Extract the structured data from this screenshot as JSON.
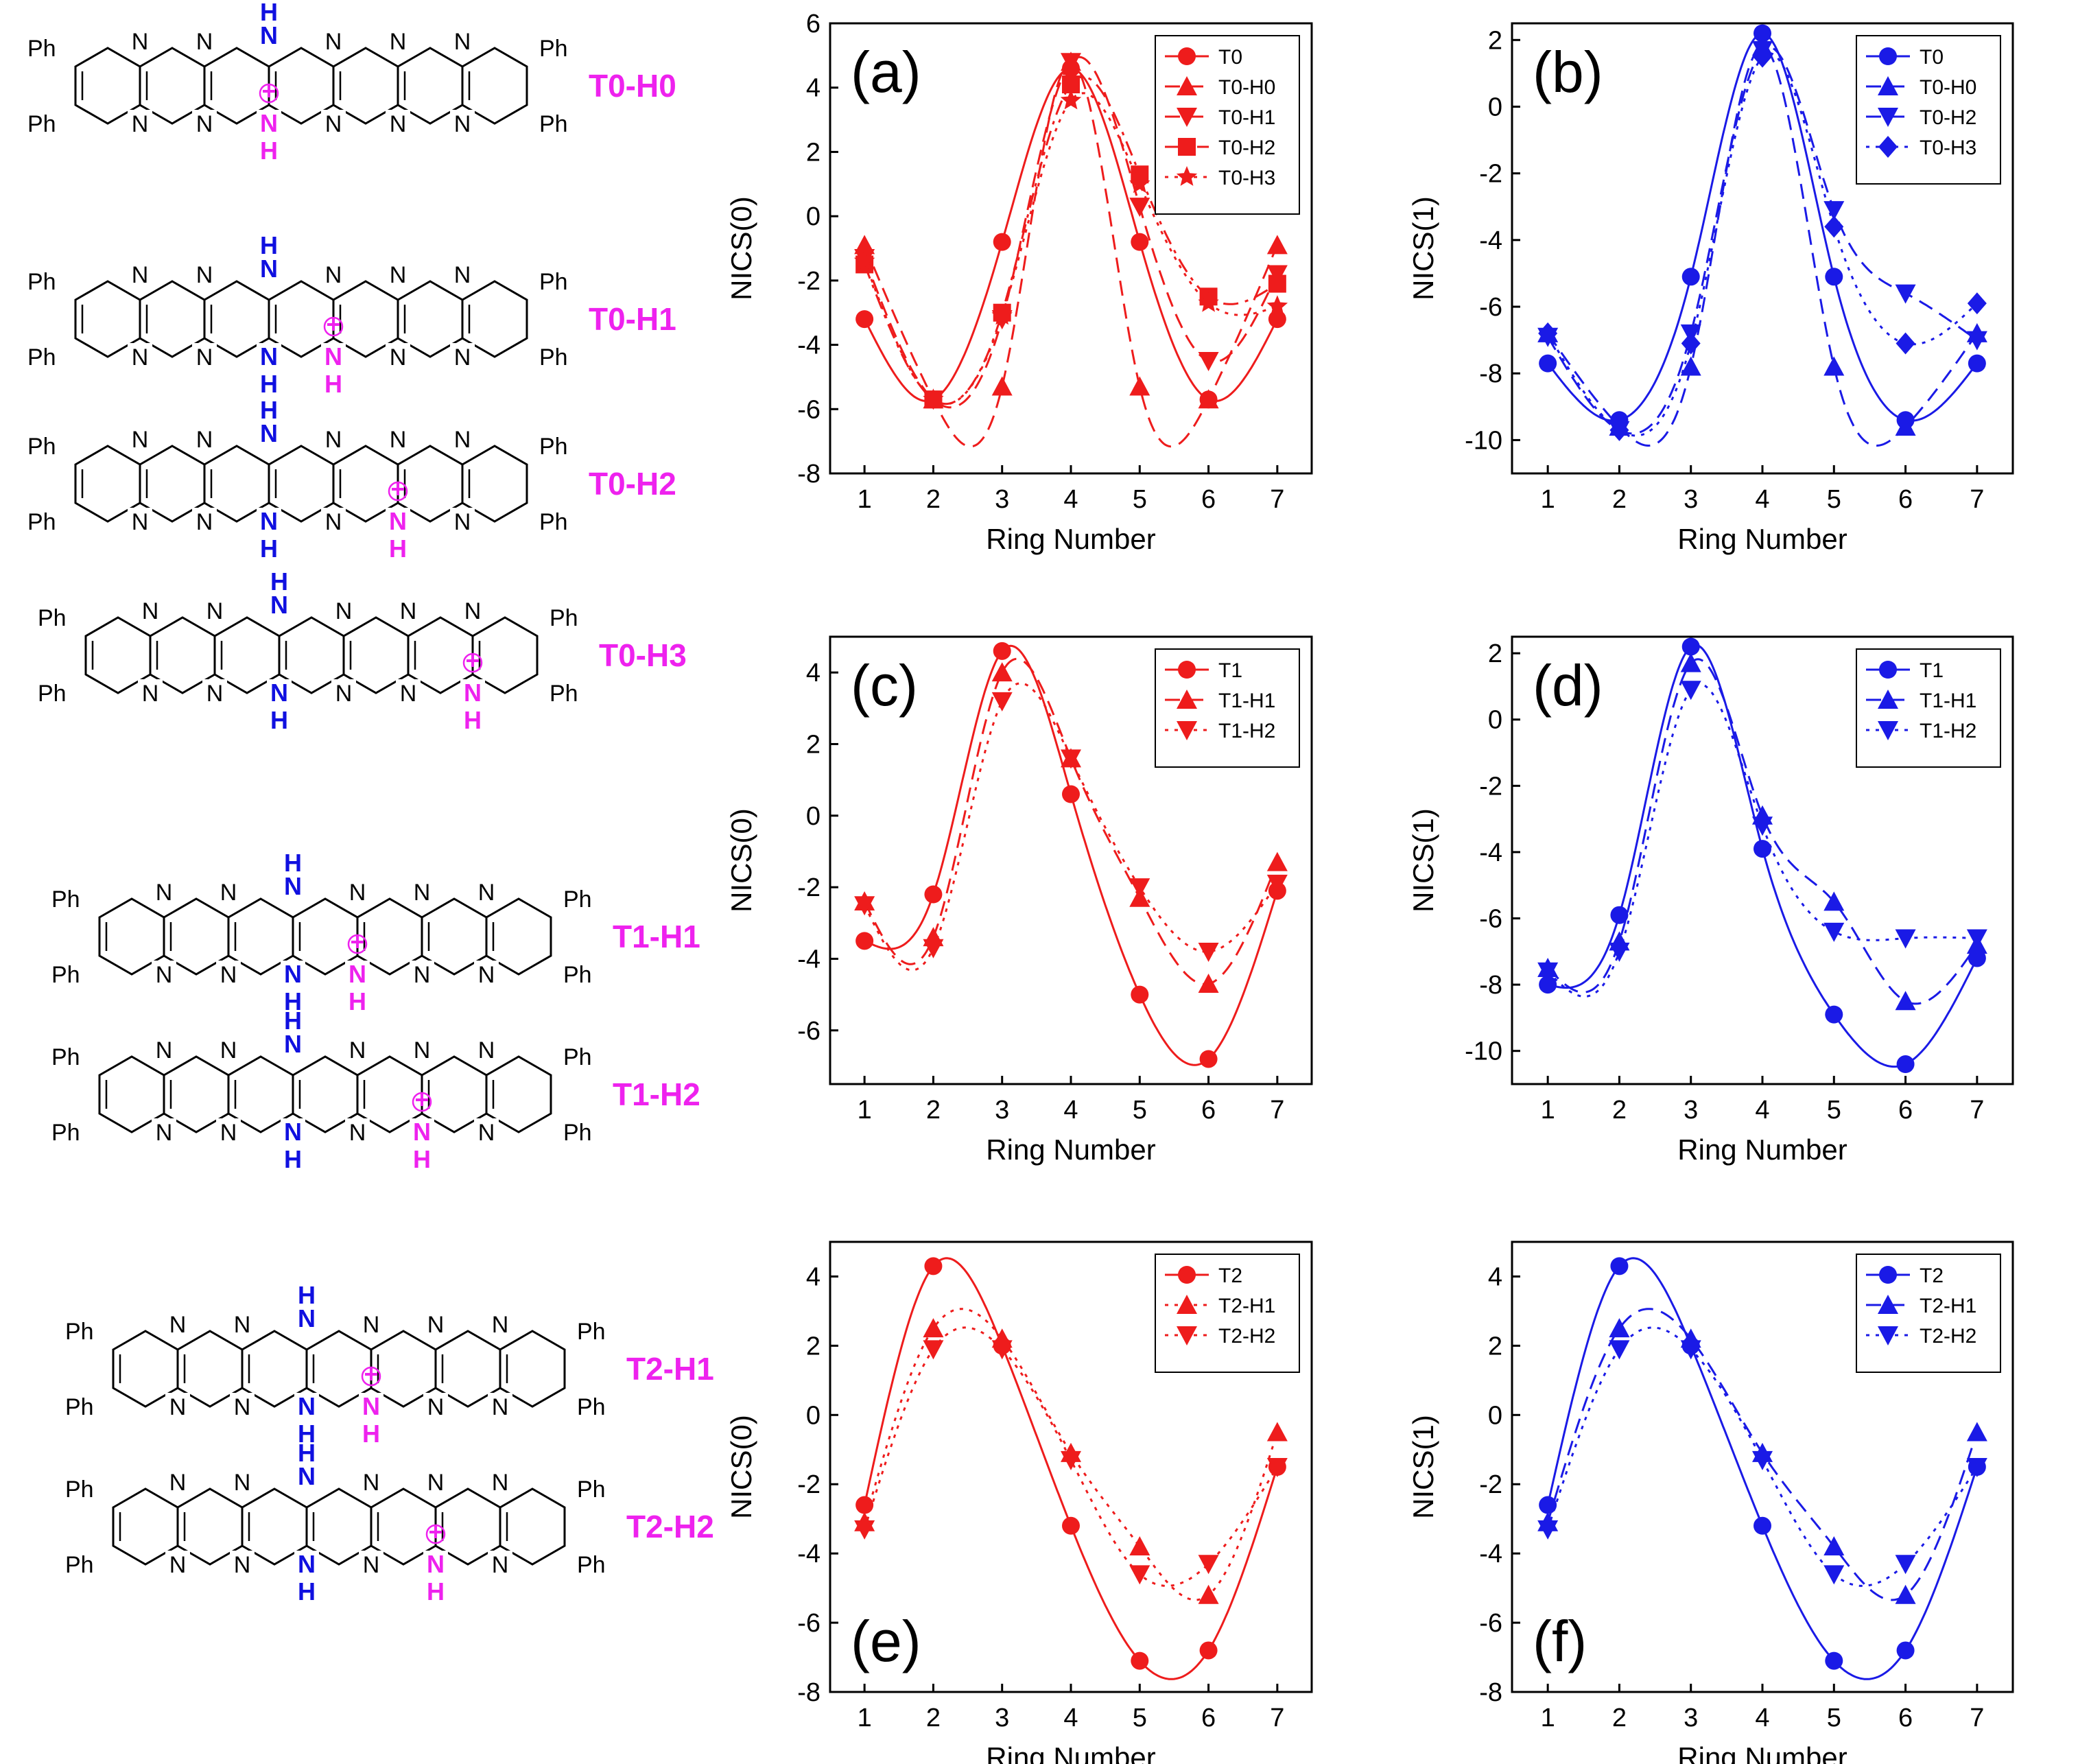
{
  "colors": {
    "red": "#ee1c1c",
    "blue": "#1a1ae6",
    "pink": "#ee22ee",
    "darkblue": "#1010e0"
  },
  "structures": [
    {
      "label": "T0-H0",
      "ph": [
        "Ph",
        "Ph",
        "Ph",
        "Ph"
      ],
      "top_nh": "H",
      "top_n": "N",
      "bottom_n_h": [
        "H",
        "H"
      ],
      "plus_index": 3,
      "neutral_nh_index": 3,
      "charge_bottom": true,
      "bottom_extra": "N",
      "bottom_extra_h": "H"
    },
    {
      "label": "T0-H1",
      "ph": [
        "Ph",
        "Ph",
        "Ph",
        "Ph"
      ],
      "plus_index": 4
    },
    {
      "label": "T0-H2",
      "ph": [
        "Ph",
        "Ph",
        "Ph",
        "Ph"
      ],
      "plus_index": 5
    },
    {
      "label": "T0-H3",
      "ph": [
        "Ph",
        "Ph",
        "Ph",
        "Ph"
      ],
      "plus_index": 6
    },
    {
      "label": "T1-H1",
      "ph": [
        "Ph",
        "Ph",
        "Ph",
        "Ph"
      ],
      "plus_index": 4
    },
    {
      "label": "T1-H2",
      "ph": [
        "Ph",
        "Ph",
        "Ph",
        "Ph"
      ],
      "plus_index": 5
    },
    {
      "label": "T2-H1",
      "ph": [
        "Ph",
        "Ph",
        "Ph",
        "Ph"
      ],
      "plus_index": 4
    },
    {
      "label": "T2-H2",
      "ph": [
        "Ph",
        "Ph",
        "Ph",
        "Ph"
      ],
      "plus_index": 5
    }
  ],
  "atom_labels": {
    "n": "N",
    "h": "H",
    "plus": "+"
  },
  "chart_data": [
    {
      "id": "a",
      "panel_label": "(a)",
      "type": "line",
      "xlabel": "Ring Number",
      "ylabel": "NICS(0)",
      "xlim": [
        0.5,
        7.5
      ],
      "ylim": [
        -8,
        6
      ],
      "xticks": [
        1,
        2,
        3,
        4,
        5,
        6,
        7
      ],
      "yticks": [
        -8,
        -6,
        -4,
        -2,
        0,
        2,
        4,
        6
      ],
      "color": "red",
      "legend_pos": "top-right",
      "x": [
        1,
        2,
        3,
        4,
        5,
        6,
        7
      ],
      "series": [
        {
          "name": "T0",
          "marker": "circle",
          "dash": "solid",
          "values": [
            -3.2,
            -5.7,
            -0.8,
            4.6,
            -0.8,
            -5.7,
            -3.2
          ]
        },
        {
          "name": "T0-H0",
          "marker": "triangle-up",
          "dash": "dashed",
          "values": [
            -0.9,
            -5.7,
            -5.3,
            4.8,
            -5.3,
            -5.7,
            -0.9
          ]
        },
        {
          "name": "T0-H1",
          "marker": "triangle-down",
          "dash": "dashed",
          "values": [
            -1.3,
            -5.7,
            -3.2,
            4.8,
            0.3,
            -4.5,
            -1.8
          ]
        },
        {
          "name": "T0-H2",
          "marker": "square",
          "dash": "dashdot",
          "values": [
            -1.5,
            -5.7,
            -3.0,
            4.1,
            1.3,
            -2.5,
            -2.1
          ]
        },
        {
          "name": "T0-H3",
          "marker": "star",
          "dash": "dotted",
          "values": [
            -1.4,
            -5.7,
            -3.1,
            3.6,
            1.0,
            -2.7,
            -2.8
          ]
        }
      ]
    },
    {
      "id": "b",
      "panel_label": "(b)",
      "type": "line",
      "xlabel": "Ring Number",
      "ylabel": "NICS(1)",
      "xlim": [
        0.5,
        7.5
      ],
      "ylim": [
        -11,
        2.5
      ],
      "xticks": [
        1,
        2,
        3,
        4,
        5,
        6,
        7
      ],
      "yticks": [
        -10,
        -8,
        -6,
        -4,
        -2,
        0,
        2
      ],
      "color": "blue",
      "legend_pos": "top-right",
      "x": [
        1,
        2,
        3,
        4,
        5,
        6,
        7
      ],
      "series": [
        {
          "name": "T0",
          "marker": "circle",
          "dash": "solid",
          "values": [
            -7.7,
            -9.4,
            -5.1,
            2.2,
            -5.1,
            -9.4,
            -7.7
          ]
        },
        {
          "name": "T0-H0",
          "marker": "triangle-up",
          "dash": "dashed",
          "values": [
            -6.8,
            -9.6,
            -7.8,
            1.8,
            -7.8,
            -9.6,
            -6.8
          ]
        },
        {
          "name": "T0-H2",
          "marker": "triangle-down",
          "dash": "dashed",
          "values": [
            -6.9,
            -9.7,
            -6.8,
            1.7,
            -3.1,
            -5.6,
            -7.0
          ]
        },
        {
          "name": "T0-H3",
          "marker": "diamond",
          "dash": "dotted",
          "values": [
            -6.8,
            -9.7,
            -7.1,
            1.5,
            -3.6,
            -7.1,
            -5.9
          ]
        }
      ]
    },
    {
      "id": "c",
      "panel_label": "(c)",
      "type": "line",
      "xlabel": "Ring Number",
      "ylabel": "NICS(0)",
      "xlim": [
        0.5,
        7.5
      ],
      "ylim": [
        -7.5,
        5
      ],
      "xticks": [
        1,
        2,
        3,
        4,
        5,
        6,
        7
      ],
      "yticks": [
        -6,
        -4,
        -2,
        0,
        2,
        4
      ],
      "color": "red",
      "legend_pos": "top-right",
      "x": [
        1,
        2,
        3,
        4,
        5,
        6,
        7
      ],
      "series": [
        {
          "name": "T1",
          "marker": "circle",
          "dash": "solid",
          "values": [
            -3.5,
            -2.2,
            4.6,
            0.6,
            -5.0,
            -6.8,
            -2.1
          ]
        },
        {
          "name": "T1-H1",
          "marker": "triangle-up",
          "dash": "dashed",
          "values": [
            -2.4,
            -3.4,
            4.0,
            1.6,
            -2.3,
            -4.7,
            -1.3
          ]
        },
        {
          "name": "T1-H2",
          "marker": "triangle-down",
          "dash": "dotted",
          "values": [
            -2.5,
            -3.7,
            3.2,
            1.6,
            -2.0,
            -3.8,
            -1.9
          ]
        }
      ]
    },
    {
      "id": "d",
      "panel_label": "(d)",
      "type": "line",
      "xlabel": "Ring Number",
      "ylabel": "NICS(1)",
      "xlim": [
        0.5,
        7.5
      ],
      "ylim": [
        -11,
        2.5
      ],
      "xticks": [
        1,
        2,
        3,
        4,
        5,
        6,
        7
      ],
      "yticks": [
        -10,
        -8,
        -6,
        -4,
        -2,
        0,
        2
      ],
      "color": "blue",
      "legend_pos": "top-right",
      "x": [
        1,
        2,
        3,
        4,
        5,
        6,
        7
      ],
      "series": [
        {
          "name": "T1",
          "marker": "circle",
          "dash": "solid",
          "values": [
            -8.0,
            -5.9,
            2.2,
            -3.9,
            -8.9,
            -10.4,
            -7.2
          ]
        },
        {
          "name": "T1-H1",
          "marker": "triangle-up",
          "dash": "dashed",
          "values": [
            -7.5,
            -6.7,
            1.7,
            -2.9,
            -5.5,
            -8.5,
            -6.8
          ]
        },
        {
          "name": "T1-H2",
          "marker": "triangle-down",
          "dash": "dotted",
          "values": [
            -7.6,
            -7.0,
            0.9,
            -3.2,
            -6.4,
            -6.6,
            -6.6
          ]
        }
      ]
    },
    {
      "id": "e",
      "panel_label": "(e)",
      "type": "line",
      "xlabel": "Ring Number",
      "ylabel": "NICS(0)",
      "xlim": [
        0.5,
        7.5
      ],
      "ylim": [
        -8,
        5
      ],
      "xticks": [
        1,
        2,
        3,
        4,
        5,
        6,
        7
      ],
      "yticks": [
        -8,
        -6,
        -4,
        -2,
        0,
        2,
        4
      ],
      "color": "red",
      "legend_pos": "top-right",
      "x": [
        1,
        2,
        3,
        4,
        5,
        6,
        7
      ],
      "series": [
        {
          "name": "T2",
          "marker": "circle",
          "dash": "solid",
          "values": [
            -2.6,
            4.3,
            2.0,
            -3.2,
            -7.1,
            -6.8,
            -1.5
          ]
        },
        {
          "name": "T2-H1",
          "marker": "triangle-up",
          "dash": "dotted",
          "values": [
            -3.1,
            2.5,
            2.2,
            -1.1,
            -3.8,
            -5.2,
            -0.5
          ]
        },
        {
          "name": "T2-H2",
          "marker": "triangle-down",
          "dash": "dotted",
          "values": [
            -3.3,
            1.9,
            1.9,
            -1.3,
            -4.6,
            -4.3,
            -1.5
          ]
        }
      ]
    },
    {
      "id": "f",
      "panel_label": "(f)",
      "type": "line",
      "xlabel": "Ring Number",
      "ylabel": "NICS(1)",
      "xlim": [
        0.5,
        7.5
      ],
      "ylim": [
        -8,
        5
      ],
      "xticks": [
        1,
        2,
        3,
        4,
        5,
        6,
        7
      ],
      "yticks": [
        -8,
        -6,
        -4,
        -2,
        0,
        2,
        4
      ],
      "color": "blue",
      "legend_pos": "top-right",
      "x": [
        1,
        2,
        3,
        4,
        5,
        6,
        7
      ],
      "series": [
        {
          "name": "T2",
          "marker": "circle",
          "dash": "solid",
          "values": [
            -2.6,
            4.3,
            2.0,
            -3.2,
            -7.1,
            -6.8,
            -1.5
          ]
        },
        {
          "name": "T2-H1",
          "marker": "triangle-up",
          "dash": "dashed",
          "values": [
            -3.1,
            2.5,
            2.2,
            -1.1,
            -3.8,
            -5.2,
            -0.5
          ]
        },
        {
          "name": "T2-H2",
          "marker": "triangle-down",
          "dash": "dotted",
          "values": [
            -3.3,
            1.9,
            1.9,
            -1.3,
            -4.6,
            -4.3,
            -1.5
          ]
        }
      ]
    }
  ]
}
